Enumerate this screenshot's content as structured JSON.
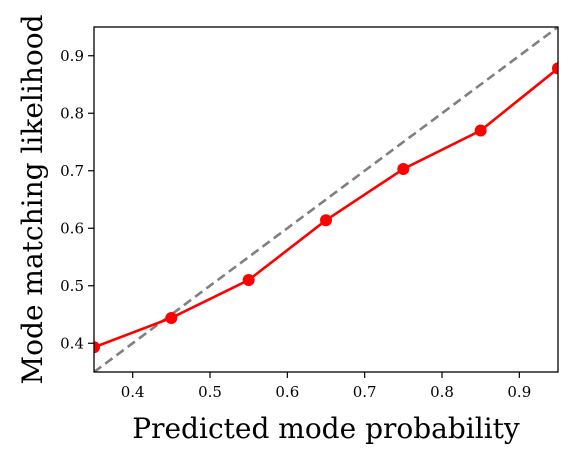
{
  "chart_data": {
    "type": "line",
    "title": "",
    "xlabel": "Predicted mode probability",
    "ylabel": "Mode matching likelihood",
    "xlim": [
      0.35,
      0.95
    ],
    "ylim": [
      0.35,
      0.95
    ],
    "xticks": [
      0.4,
      0.5,
      0.6,
      0.7,
      0.8,
      0.9
    ],
    "yticks": [
      0.4,
      0.5,
      0.6,
      0.7,
      0.8,
      0.9
    ],
    "xtick_labels": [
      "0.4",
      "0.5",
      "0.6",
      "0.7",
      "0.8",
      "0.9"
    ],
    "ytick_labels": [
      "0.4",
      "0.5",
      "0.6",
      "0.7",
      "0.8",
      "0.9"
    ],
    "grid": false,
    "series": [
      {
        "x": [
          0.35,
          0.45,
          0.55,
          0.65,
          0.75,
          0.85,
          0.95
        ],
        "values": [
          0.393,
          0.444,
          0.51,
          0.614,
          0.703,
          0.77,
          0.878
        ],
        "color": "#ff0000",
        "marker": "circle",
        "style": "solid"
      }
    ],
    "reference_line": {
      "x": [
        0.35,
        0.95
      ],
      "values": [
        0.35,
        0.95
      ],
      "color": "#808080",
      "style": "dashed"
    }
  }
}
